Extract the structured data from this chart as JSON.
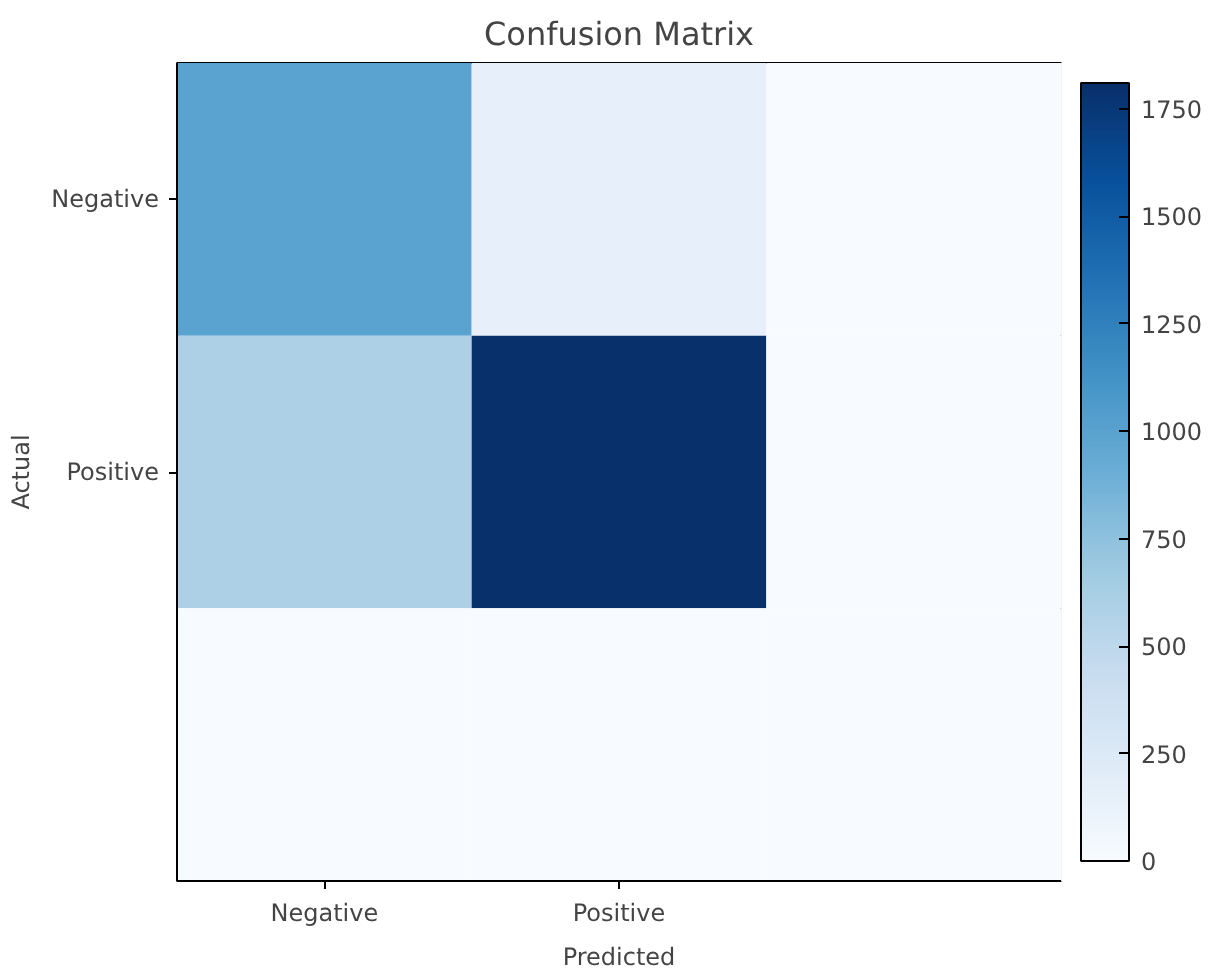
{
  "chart_data": {
    "type": "heatmap",
    "title": "Confusion Matrix",
    "xlabel": "Predicted",
    "ylabel": "Actual",
    "categories": [
      "Negative",
      "Positive",
      null
    ],
    "y_categories": [
      "Negative",
      "Positive",
      null
    ],
    "cells": [
      [
        1000,
        150,
        0
      ],
      [
        600,
        1810,
        0
      ],
      [
        0,
        0,
        0
      ]
    ],
    "clim": [
      0,
      1810
    ],
    "cticks": [
      0,
      250,
      500,
      750,
      1000,
      1250,
      1500,
      1750
    ],
    "grid": false
  }
}
